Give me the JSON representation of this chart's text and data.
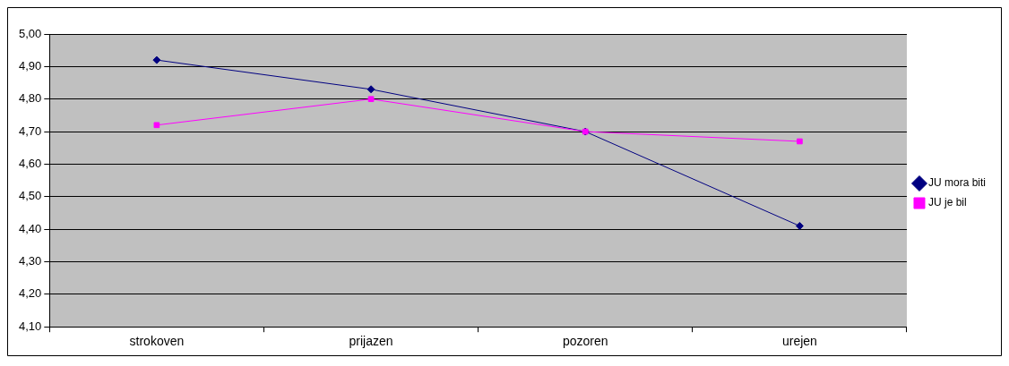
{
  "chart_data": {
    "type": "line",
    "categories": [
      "strokoven",
      "prijazen",
      "pozoren",
      "urejen"
    ],
    "series": [
      {
        "name": "JU mora biti",
        "color": "#000080",
        "marker": "diamond",
        "values": [
          4.92,
          4.83,
          4.7,
          4.41
        ]
      },
      {
        "name": "JU je bil",
        "color": "#ff00ff",
        "marker": "square",
        "values": [
          4.72,
          4.8,
          4.7,
          4.67
        ]
      }
    ],
    "ylim": [
      4.1,
      5.0
    ],
    "yticks": [
      {
        "value": 4.1,
        "label": "4,10"
      },
      {
        "value": 4.2,
        "label": "4,20"
      },
      {
        "value": 4.3,
        "label": "4,30"
      },
      {
        "value": 4.4,
        "label": "4,40"
      },
      {
        "value": 4.5,
        "label": "4,50"
      },
      {
        "value": 4.6,
        "label": "4,60"
      },
      {
        "value": 4.7,
        "label": "4,70"
      },
      {
        "value": 4.8,
        "label": "4,80"
      },
      {
        "value": 4.9,
        "label": "4,90"
      },
      {
        "value": 5.0,
        "label": "5,00"
      }
    ],
    "grid": "y",
    "legend": "right",
    "line_style": "solid"
  }
}
